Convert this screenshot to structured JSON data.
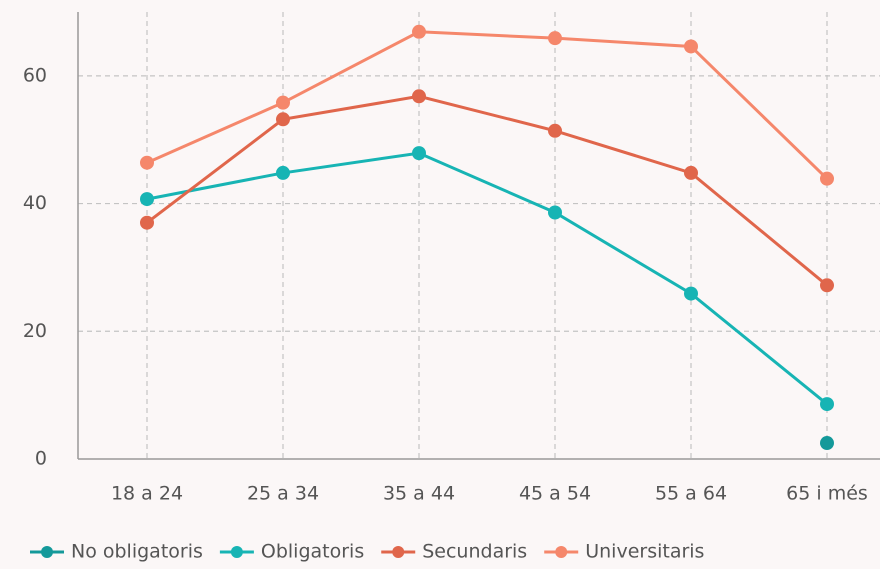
{
  "chart_data": {
    "type": "line",
    "categories": [
      "18 a 24",
      "25 a 34",
      "35 a 44",
      "45 a 54",
      "55 a 64",
      "65 i més"
    ],
    "series": [
      {
        "name": "No obligatoris",
        "color": "#14999a",
        "values": [
          null,
          null,
          null,
          null,
          null,
          2.5
        ]
      },
      {
        "name": "Obligatoris",
        "color": "#17b4b4",
        "values": [
          40.7,
          44.8,
          47.9,
          38.6,
          25.9,
          8.6
        ]
      },
      {
        "name": "Secundaris",
        "color": "#e0664b",
        "values": [
          37,
          53.2,
          56.8,
          51.4,
          44.8,
          27.2
        ]
      },
      {
        "name": "Universitaris",
        "color": "#f5876b",
        "values": [
          46.4,
          55.8,
          66.9,
          65.9,
          64.6,
          43.9
        ]
      }
    ],
    "ylim": [
      0,
      70
    ],
    "yticks": [
      0,
      20,
      40,
      60
    ],
    "grid": true,
    "legend": "bottom"
  }
}
